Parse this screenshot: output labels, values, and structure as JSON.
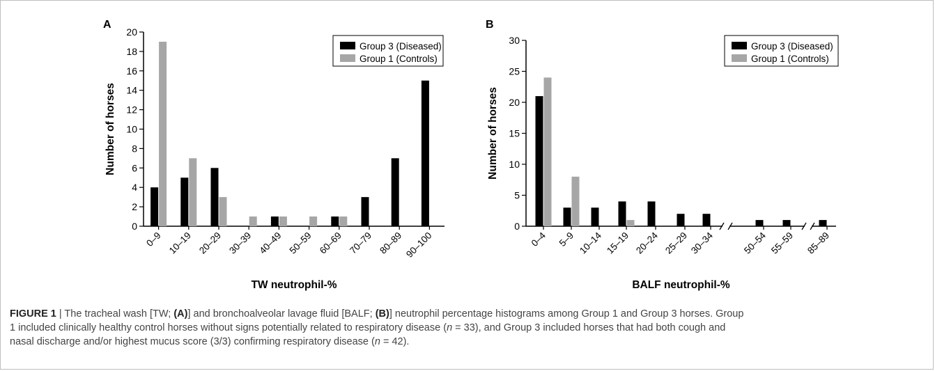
{
  "chart_data": [
    {
      "type": "bar",
      "panel_label": "A",
      "categories": [
        "0–9",
        "10–19",
        "20–29",
        "30–39",
        "40–49",
        "50–59",
        "60–69",
        "70–79",
        "80–89",
        "90–100"
      ],
      "series": [
        {
          "name": "Group 3 (Diseased)",
          "color": "#000000",
          "values": [
            4,
            5,
            6,
            0,
            1,
            0,
            1,
            3,
            7,
            15
          ]
        },
        {
          "name": "Group 1 (Controls)",
          "color": "#a6a6a6",
          "values": [
            19,
            7,
            3,
            1,
            1,
            1,
            1,
            0,
            0,
            0
          ]
        }
      ],
      "ylim": [
        0,
        20
      ],
      "yticks": [
        "0",
        "2",
        "4",
        "6",
        "8",
        "10",
        "12",
        "14",
        "16",
        "18",
        "20"
      ],
      "xlabel": "TW neutrophil-%",
      "ylabel": "Number of horses",
      "legend": "top-right",
      "grid": false
    },
    {
      "type": "bar",
      "panel_label": "B",
      "categories": [
        "0–4",
        "5–9",
        "10–14",
        "15–19",
        "20–24",
        "25–29",
        "30–34",
        "50–54",
        "55–59",
        "85–89"
      ],
      "series": [
        {
          "name": "Group 3 (Diseased)",
          "color": "#000000",
          "values": [
            21,
            3,
            3,
            4,
            4,
            2,
            2,
            1,
            1,
            1
          ]
        },
        {
          "name": "Group 1 (Controls)",
          "color": "#a6a6a6",
          "values": [
            24,
            8,
            0,
            1,
            0,
            0,
            0,
            0,
            0,
            0
          ]
        }
      ],
      "ylim": [
        0,
        30
      ],
      "yticks": [
        "0",
        "5",
        "10",
        "15",
        "20",
        "25",
        "30"
      ],
      "axis_breaks_after": [
        "30–34",
        "55–59"
      ],
      "xlabel": "BALF neutrophil-%",
      "ylabel": "Number of horses",
      "legend": "top-right",
      "grid": false
    }
  ],
  "caption": {
    "label": "FIGURE 1",
    "lines": [
      [
        {
          "t": " | The tracheal wash [TW; "
        },
        {
          "t": "(A)",
          "b": true
        },
        {
          "t": "] and bronchoalveolar lavage fluid [BALF; "
        },
        {
          "t": "(B)",
          "b": true
        },
        {
          "t": "] neutrophil percentage histograms among Group 1 and Group 3 horses. Group"
        }
      ],
      [
        {
          "t": "1 included clinically healthy control horses without signs potentially related to respiratory disease ("
        },
        {
          "t": "n",
          "i": true
        },
        {
          "t": " = 33), and Group 3 included horses that had both cough and"
        }
      ],
      [
        {
          "t": "nasal discharge and/or highest mucus score (3/3) confirming respiratory disease ("
        },
        {
          "t": "n",
          "i": true
        },
        {
          "t": " = 42)."
        }
      ]
    ]
  }
}
